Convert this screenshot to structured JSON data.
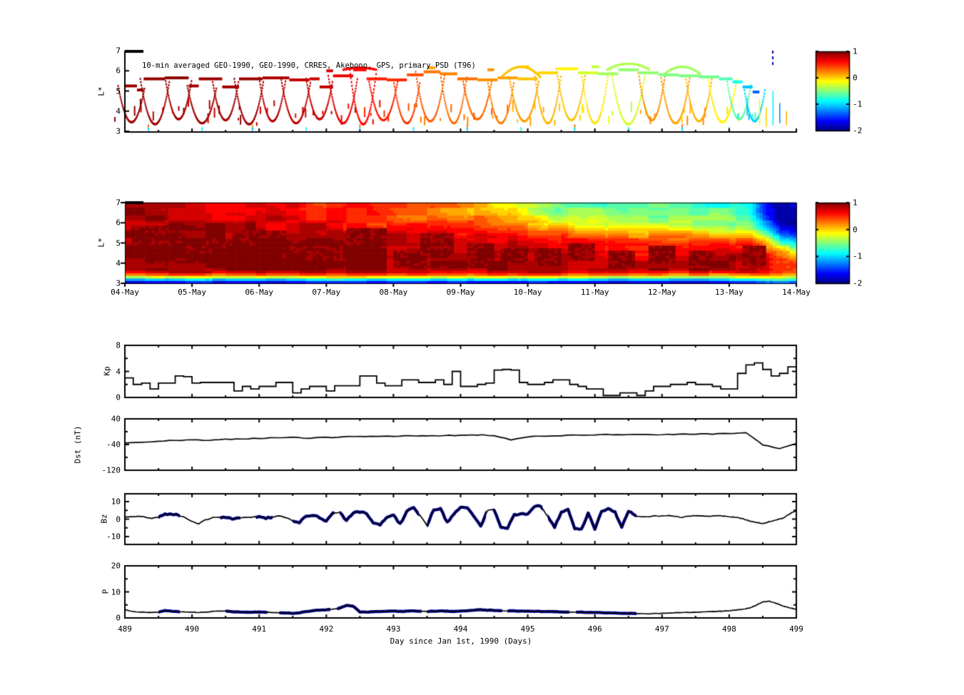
{
  "figure": {
    "bg": "#ffffff",
    "axis_color": "#000000"
  },
  "xaxis": {
    "xlim": [
      489,
      499
    ],
    "day_ticks": [
      "489",
      "490",
      "491",
      "492",
      "493",
      "494",
      "495",
      "496",
      "497",
      "498",
      "499"
    ],
    "date_ticks": [
      "04-May",
      "05-May",
      "06-May",
      "07-May",
      "08-May",
      "09-May",
      "10-May",
      "11-May",
      "12-May",
      "13-May",
      "14-May"
    ],
    "xlabel": "Day since Jan 1st, 1990 (Days)"
  },
  "chart_data": [
    {
      "type": "scatter",
      "title": "10-min averaged GEO-1990, GEO-1990, CRRES, Akebono, GPS, primary PSD (T96)",
      "ylabel": "L*",
      "ylim": [
        3,
        7
      ],
      "yticks": [
        "7",
        "6",
        "5",
        "4",
        "3"
      ],
      "color_value_lim": [
        -2,
        1
      ],
      "band_segments": [
        [
          489.0,
          489.18,
          5.25,
          0.92
        ],
        [
          489.18,
          489.28,
          5.05,
          0.92
        ],
        [
          489.28,
          489.6,
          5.6,
          0.93
        ],
        [
          489.6,
          489.95,
          5.65,
          0.95
        ],
        [
          489.95,
          490.1,
          5.25,
          0.9
        ],
        [
          490.1,
          490.45,
          5.6,
          0.92
        ],
        [
          490.45,
          490.7,
          5.2,
          0.9
        ],
        [
          490.7,
          491.05,
          5.6,
          0.92
        ],
        [
          491.05,
          491.45,
          5.65,
          0.85
        ],
        [
          491.45,
          491.75,
          5.55,
          0.8
        ],
        [
          491.75,
          491.9,
          5.6,
          0.78
        ],
        [
          491.9,
          492.1,
          5.2,
          0.8
        ],
        [
          492.1,
          492.4,
          5.75,
          0.68
        ],
        [
          492.4,
          492.6,
          6.05,
          0.6
        ],
        [
          492.6,
          492.9,
          5.6,
          0.55
        ],
        [
          492.9,
          493.2,
          5.55,
          0.5
        ],
        [
          493.2,
          493.45,
          5.8,
          0.4
        ],
        [
          493.45,
          493.7,
          5.95,
          0.28
        ],
        [
          493.7,
          493.95,
          5.85,
          0.25
        ],
        [
          493.95,
          494.25,
          5.6,
          0.3
        ],
        [
          494.25,
          494.55,
          5.55,
          0.2
        ],
        [
          494.55,
          494.85,
          5.65,
          0.15
        ],
        [
          494.85,
          495.15,
          5.6,
          0.05
        ],
        [
          495.15,
          495.45,
          5.9,
          0.0
        ],
        [
          495.45,
          495.75,
          6.1,
          -0.1
        ],
        [
          495.75,
          496.05,
          5.9,
          -0.25
        ],
        [
          496.05,
          496.35,
          5.85,
          -0.4
        ],
        [
          496.35,
          496.65,
          6.05,
          -0.45
        ],
        [
          496.65,
          496.95,
          5.9,
          -0.45
        ],
        [
          496.95,
          497.25,
          5.8,
          -0.5
        ],
        [
          497.25,
          497.55,
          5.75,
          -0.5
        ],
        [
          497.55,
          497.85,
          5.7,
          -0.55
        ],
        [
          497.85,
          498.05,
          5.6,
          -0.65
        ],
        [
          498.05,
          498.2,
          5.45,
          -0.85
        ],
        [
          498.2,
          498.35,
          5.2,
          -1.05
        ],
        [
          498.35,
          498.45,
          4.95,
          -1.35
        ],
        [
          493.5,
          493.62,
          6.15,
          0.15
        ],
        [
          494.9,
          495.02,
          6.2,
          0.02
        ],
        [
          495.95,
          496.07,
          6.2,
          -0.3
        ],
        [
          492.0,
          492.1,
          6.0,
          0.75
        ],
        [
          494.4,
          494.5,
          6.05,
          0.2
        ]
      ],
      "traces": [
        [
          489.1,
          0.2,
          3.45,
          0.92
        ],
        [
          489.45,
          0.22,
          3.35,
          0.92
        ],
        [
          489.8,
          0.2,
          3.6,
          0.9
        ],
        [
          490.15,
          0.22,
          3.4,
          0.9
        ],
        [
          490.5,
          0.2,
          3.55,
          0.88
        ],
        [
          490.85,
          0.22,
          3.35,
          0.9
        ],
        [
          491.2,
          0.2,
          3.5,
          0.85
        ],
        [
          491.55,
          0.22,
          3.4,
          0.8
        ],
        [
          491.9,
          0.2,
          3.6,
          0.78
        ],
        [
          492.25,
          0.22,
          3.4,
          0.7
        ],
        [
          492.55,
          0.2,
          3.35,
          0.62
        ],
        [
          492.85,
          0.22,
          3.55,
          0.55
        ],
        [
          493.2,
          0.2,
          3.4,
          0.45
        ],
        [
          493.55,
          0.22,
          3.5,
          0.35
        ],
        [
          493.9,
          0.2,
          3.4,
          0.3
        ],
        [
          494.25,
          0.22,
          3.6,
          0.3
        ],
        [
          494.6,
          0.2,
          3.4,
          0.25
        ],
        [
          494.95,
          0.22,
          3.5,
          0.15
        ],
        [
          495.3,
          0.2,
          3.4,
          0.1
        ],
        [
          495.65,
          0.22,
          3.55,
          0.05
        ],
        [
          496.0,
          0.2,
          3.4,
          -0.05
        ],
        [
          496.5,
          0.26,
          3.35,
          -0.25
        ],
        [
          496.85,
          0.2,
          3.55,
          0.2
        ],
        [
          497.2,
          0.22,
          3.4,
          0.15
        ],
        [
          497.55,
          0.2,
          3.5,
          0.1
        ],
        [
          497.9,
          0.22,
          3.45,
          -0.1
        ],
        [
          498.15,
          0.18,
          3.6,
          -0.6
        ],
        [
          498.38,
          0.16,
          3.5,
          -1.0
        ]
      ],
      "arches": [
        [
          492.5,
          0.25,
          6.15,
          0.62
        ],
        [
          494.9,
          0.3,
          6.2,
          0.05
        ],
        [
          496.5,
          0.32,
          6.35,
          -0.35
        ],
        [
          497.3,
          0.28,
          6.2,
          -0.4
        ]
      ],
      "bottom_ticks": [
        [
          489.35,
          -1.0
        ],
        [
          490.15,
          -0.9
        ],
        [
          490.9,
          -1.1
        ],
        [
          491.7,
          -0.8
        ],
        [
          492.5,
          -1.0
        ],
        [
          493.3,
          -0.9
        ],
        [
          494.1,
          -1.0
        ],
        [
          494.9,
          -0.8
        ],
        [
          495.7,
          -1.0
        ],
        [
          496.5,
          -0.9
        ],
        [
          497.3,
          -1.0
        ],
        [
          498.0,
          -1.1
        ]
      ],
      "right_ticks": [
        [
          498.45,
          3.3,
          4.6,
          -0.2
        ],
        [
          498.55,
          3.2,
          4.2,
          0.0
        ],
        [
          498.65,
          3.3,
          5.0,
          -0.9
        ],
        [
          498.75,
          3.4,
          4.4,
          -1.2
        ],
        [
          498.85,
          3.3,
          4.0,
          0.1
        ]
      ],
      "dashed_marker": {
        "day": 498.65,
        "L0": 6.2,
        "L1": 7.0,
        "value": -1.8
      }
    },
    {
      "type": "heatmap",
      "ylabel": "L*",
      "ylim": [
        3,
        7
      ],
      "yticks": [
        "7",
        "6",
        "5",
        "4",
        "3"
      ],
      "color_value_lim": [
        -2,
        1
      ],
      "keyframes": {
        "days": [
          489,
          491,
          492.5,
          493.5,
          494.5,
          495.5,
          496.5,
          497.5,
          498.3,
          498.55,
          498.75,
          499
        ],
        "L": [
          3,
          3.18,
          3.38,
          3.6,
          4,
          4.5,
          5,
          5.5,
          6,
          6.5,
          7
        ],
        "values": [
          [
            -1.9,
            -1.05,
            0.2,
            0.95,
            1,
            1,
            0.98,
            0.95,
            0.9,
            0.85,
            0.8
          ],
          [
            -1.9,
            -1.0,
            0.25,
            0.92,
            0.98,
            0.95,
            0.9,
            0.85,
            0.8,
            0.72,
            0.65
          ],
          [
            -1.9,
            -1.0,
            0.3,
            0.9,
            0.95,
            0.9,
            0.8,
            0.7,
            0.6,
            0.55,
            0.5
          ],
          [
            -1.9,
            -0.9,
            0.3,
            0.9,
            0.95,
            0.85,
            0.8,
            0.65,
            0.45,
            0.32,
            0.3
          ],
          [
            -1.9,
            -0.9,
            0.3,
            0.85,
            0.9,
            0.85,
            0.75,
            0.5,
            0.2,
            0.1,
            0.0
          ],
          [
            -1.9,
            -1.0,
            0.2,
            0.85,
            0.9,
            0.8,
            0.6,
            0.3,
            -0.2,
            -0.5,
            -0.55
          ],
          [
            -1.9,
            -1.0,
            0.2,
            0.8,
            0.85,
            0.7,
            0.5,
            0.1,
            -0.4,
            -0.6,
            -0.65
          ],
          [
            -1.9,
            -1.0,
            0.15,
            0.8,
            0.85,
            0.65,
            0.4,
            0.0,
            -0.45,
            -0.6,
            -0.65
          ],
          [
            -1.9,
            -1.0,
            0.1,
            0.85,
            0.95,
            0.8,
            0.45,
            -0.1,
            -0.5,
            -0.7,
            -0.8
          ],
          [
            -1.7,
            -0.8,
            0.2,
            0.7,
            0.8,
            0.5,
            0.0,
            -0.7,
            -1.2,
            -1.5,
            -1.6
          ],
          [
            -1.5,
            -0.6,
            0.1,
            0.5,
            0.55,
            0.2,
            -0.6,
            -1.4,
            -1.8,
            -1.9,
            -1.9
          ],
          [
            -1.7,
            -0.9,
            -0.1,
            0.35,
            0.4,
            -0.1,
            -0.9,
            -1.5,
            -1.9,
            -1.9,
            -1.9
          ]
        ]
      },
      "blobs": [
        [
          489.1,
          489.9,
          4.4,
          5.9
        ],
        [
          489.3,
          490.6,
          4.0,
          5.2
        ],
        [
          490.6,
          491.4,
          4.3,
          5.6
        ],
        [
          491.1,
          492.2,
          3.8,
          4.9
        ],
        [
          492.3,
          492.9,
          4.3,
          5.8
        ],
        [
          493.0,
          493.5,
          3.8,
          4.6
        ],
        [
          493.4,
          493.9,
          4.2,
          5.5
        ],
        [
          494.1,
          494.5,
          3.8,
          5.0
        ],
        [
          494.6,
          495.0,
          4.0,
          4.8
        ],
        [
          495.1,
          495.5,
          3.9,
          4.7
        ],
        [
          495.6,
          496.0,
          4.1,
          5.0
        ],
        [
          496.2,
          496.6,
          3.8,
          4.6
        ],
        [
          496.8,
          497.2,
          4.0,
          4.9
        ],
        [
          497.4,
          497.8,
          3.9,
          4.6
        ],
        [
          498.2,
          498.55,
          3.9,
          4.9
        ]
      ]
    },
    {
      "type": "colorbar",
      "ticks": [
        "1",
        "0",
        "-1",
        "-2"
      ],
      "lim": [
        -2,
        1
      ]
    },
    {
      "type": "line",
      "ylabel": "Kp",
      "ylim": [
        0,
        8
      ],
      "yticks": [
        "8",
        "4",
        "0"
      ],
      "yminor": [
        2,
        6
      ],
      "step_days": 0.125,
      "values": [
        3,
        2,
        2.2,
        1.3,
        2.2,
        2.2,
        3.3,
        3.2,
        2.2,
        2.3,
        2.3,
        2.3,
        2.3,
        1,
        1.7,
        1.3,
        1.7,
        1.7,
        2.3,
        2.3,
        0.7,
        1.3,
        1.7,
        1.7,
        1,
        1.8,
        1.8,
        1.8,
        3.3,
        3.3,
        2.2,
        1.8,
        1.8,
        2.7,
        2.7,
        2.3,
        2.3,
        2.7,
        2,
        4,
        1.7,
        1.7,
        2,
        2.2,
        4.2,
        4.3,
        4.2,
        2.3,
        2,
        2,
        2.3,
        2.7,
        2.7,
        2,
        1.7,
        1.3,
        1.3,
        0.3,
        0.3,
        0.7,
        0.7,
        0.3,
        1,
        1.7,
        1.7,
        2,
        2,
        2.3,
        2,
        2,
        1.7,
        1.3,
        1.3,
        3.7,
        5,
        5.3,
        4.3,
        3.3,
        3.7,
        4.7
      ]
    },
    {
      "type": "line",
      "ylabel": "Dst (nT)",
      "ylim": [
        -120,
        40
      ],
      "yticks": [
        "40",
        "-40",
        "-120"
      ],
      "yminor": [
        0,
        -80
      ],
      "dt_days": 0.25,
      "values": [
        -35,
        -32,
        -29,
        -27,
        -25,
        -26,
        -24,
        -22,
        -21,
        -19,
        -18,
        -20,
        -18,
        -16,
        -14,
        -15,
        -14,
        -12,
        -13,
        -12,
        -11,
        -10,
        -12,
        -25,
        -16,
        -13,
        -12,
        -11,
        -10,
        -9,
        -9,
        -10,
        -9,
        -8,
        -8,
        -7,
        -6,
        -3,
        -40,
        -52,
        -38
      ]
    },
    {
      "type": "line",
      "ylabel": "Bz",
      "ylim": [
        -14.5,
        14.5
      ],
      "yticks": [
        "10",
        "0",
        "-10"
      ],
      "yminor": [
        5,
        -5
      ],
      "dt_days": 0.1,
      "highlight_color": "#00009c",
      "highlight_ranges": [
        [
          489.5,
          489.82
        ],
        [
          490.42,
          490.72
        ],
        [
          490.95,
          491.2
        ],
        [
          491.5,
          492.12
        ],
        [
          492.2,
          493.38
        ],
        [
          493.5,
          494.38
        ],
        [
          494.48,
          495.22
        ],
        [
          495.3,
          496.62
        ]
      ],
      "values": [
        1.2,
        1.5,
        1.8,
        1.2,
        0.4,
        1.5,
        2.6,
        3,
        2.2,
        0.8,
        -1.5,
        -2.6,
        -0.5,
        0.8,
        1.2,
        0.8,
        0.3,
        0.8,
        1,
        1.2,
        1.5,
        0.5,
        1.2,
        2,
        0.8,
        -0.8,
        -1.8,
        1.5,
        2.2,
        0.8,
        -1.2,
        3.2,
        4,
        -1,
        3.5,
        4.2,
        3,
        -2.2,
        -3,
        1.2,
        2,
        -2.8,
        4.5,
        6.8,
        2,
        -3.5,
        5.5,
        6,
        -2,
        3,
        6.5,
        6.8,
        1.5,
        -4,
        5,
        5.5,
        -4.5,
        -5,
        2.5,
        3,
        2.8,
        7,
        7.5,
        1,
        -4.8,
        4,
        6,
        -5.5,
        -6,
        3.5,
        -5.8,
        4.5,
        5.8,
        4,
        -4.5,
        4.8,
        2,
        1.2,
        1.5,
        1.8,
        1.8,
        2.2,
        1.5,
        1,
        1.8,
        2,
        1.8,
        1.5,
        2,
        1.8,
        1.5,
        1,
        0.2,
        -1,
        -2,
        -2.5,
        -1.5,
        -0.5,
        0.5,
        3,
        5
      ]
    },
    {
      "type": "line",
      "ylabel": "P",
      "ylim": [
        0,
        20
      ],
      "yticks": [
        "20",
        "10",
        "0"
      ],
      "yminor": [
        5,
        15
      ],
      "dt_days": 0.1,
      "highlight_color": "#00009c",
      "highlight_ranges": [
        [
          489.5,
          489.82
        ],
        [
          490.5,
          491.12
        ],
        [
          491.3,
          492.06
        ],
        [
          492.16,
          493.42
        ],
        [
          493.5,
          494.62
        ],
        [
          494.7,
          495.62
        ],
        [
          495.72,
          496.62
        ]
      ],
      "values": [
        3.2,
        2.6,
        2.3,
        2.2,
        2.1,
        2.3,
        2.8,
        2.6,
        2.4,
        2.3,
        2.2,
        2.1,
        2.2,
        2.5,
        2.7,
        2.6,
        2.4,
        2.3,
        2.2,
        2.2,
        2.3,
        2.2,
        2.1,
        2,
        1.9,
        1.8,
        2,
        2.4,
        2.8,
        3,
        3.1,
        3.3,
        3.8,
        4.8,
        4.5,
        2.3,
        2.2,
        2.4,
        2.5,
        2.6,
        2.6,
        2.5,
        2.6,
        2.7,
        2.6,
        2.5,
        2.6,
        2.7,
        2.6,
        2.5,
        2.6,
        2.8,
        3,
        3.2,
        3,
        2.9,
        2.8,
        2.7,
        2.7,
        2.6,
        2.6,
        2.5,
        2.5,
        2.4,
        2.4,
        2.3,
        2.3,
        2.2,
        2.2,
        2.1,
        2.1,
        2,
        1.9,
        1.9,
        1.8,
        1.8,
        1.7,
        1.6,
        1.6,
        1.7,
        1.8,
        1.9,
        2,
        2.1,
        2.1,
        2.2,
        2.3,
        2.4,
        2.5,
        2.6,
        2.8,
        3,
        3.3,
        3.8,
        4.8,
        6.2,
        6.4,
        5.6,
        4.6,
        3.9,
        3.3
      ]
    }
  ]
}
